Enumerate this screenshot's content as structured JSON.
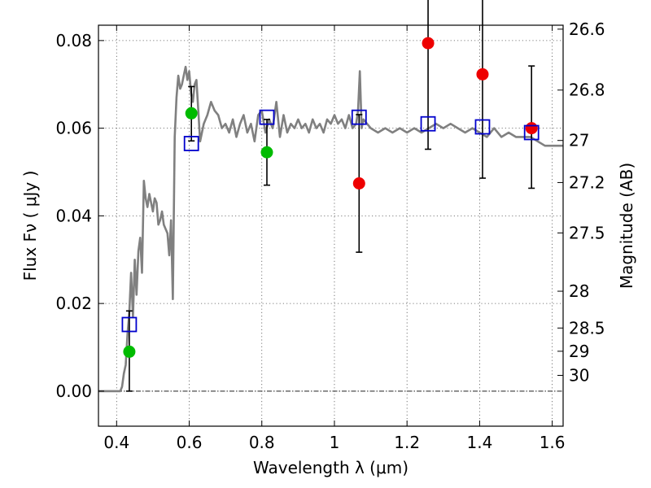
{
  "chart_data": {
    "type": "scatter",
    "xlabel": "Wavelength  λ (μm)",
    "ylabel": "Flux  Fν  ( μJy )",
    "y2label": "Magnitude (AB)",
    "xlim": [
      0.35,
      1.63
    ],
    "ylim": [
      -0.008,
      0.0835
    ],
    "xticks": [
      0.4,
      0.6,
      0.8,
      1.0,
      1.2,
      1.4,
      1.6
    ],
    "xtick_labels": [
      "0.4",
      "0.6",
      "0.8",
      "1",
      "1.2",
      "1.4",
      "1.6"
    ],
    "yticks": [
      0.0,
      0.02,
      0.04,
      0.06,
      0.08
    ],
    "ytick_labels": [
      "0.00",
      "0.02",
      "0.04",
      "0.06",
      "0.08"
    ],
    "mag_ticks": [
      {
        "label": "26.6",
        "flux": 0.0826
      },
      {
        "label": "26.8",
        "flux": 0.0687
      },
      {
        "label": "27",
        "flux": 0.0572
      },
      {
        "label": "27.2",
        "flux": 0.0476
      },
      {
        "label": "27.5",
        "flux": 0.0361
      },
      {
        "label": "28",
        "flux": 0.0228
      },
      {
        "label": "28.5",
        "flux": 0.0144
      },
      {
        "label": "29",
        "flux": 0.0091
      },
      {
        "label": "30",
        "flux": 0.0036
      }
    ],
    "grid": true,
    "series": [
      {
        "name": "green detections",
        "color": "#00bb00",
        "points": [
          {
            "x": 0.435,
            "y": 0.009,
            "err_lo": 0.009,
            "err_hi": 0.0093
          },
          {
            "x": 0.606,
            "y": 0.0634,
            "err_lo": 0.0063,
            "err_hi": 0.0061
          },
          {
            "x": 0.814,
            "y": 0.0545,
            "err_lo": 0.0075,
            "err_hi": 0.0075
          }
        ]
      },
      {
        "name": "red detections",
        "color": "#ee0000",
        "points": [
          {
            "x": 1.068,
            "y": 0.0474,
            "err_lo": 0.0157,
            "err_hi": 0.0157
          },
          {
            "x": 1.258,
            "y": 0.0794,
            "err_lo": 0.0242,
            "err_hi": 0.0242
          },
          {
            "x": 1.408,
            "y": 0.0723,
            "err_lo": 0.0237,
            "err_hi": 0.0237
          },
          {
            "x": 1.543,
            "y": 0.06,
            "err_lo": 0.0137,
            "err_hi": 0.0142
          }
        ]
      },
      {
        "name": "model photometry",
        "color": "#0000cc",
        "marker": "open-square",
        "points": [
          {
            "x": 0.435,
            "y": 0.0152
          },
          {
            "x": 0.606,
            "y": 0.0565
          },
          {
            "x": 0.814,
            "y": 0.0625
          },
          {
            "x": 1.068,
            "y": 0.0625
          },
          {
            "x": 1.258,
            "y": 0.061
          },
          {
            "x": 1.408,
            "y": 0.0603
          },
          {
            "x": 1.543,
            "y": 0.059
          }
        ]
      }
    ],
    "sed": {
      "name": "best-fit SED",
      "color": "#808080",
      "x": [
        0.35,
        0.41,
        0.415,
        0.42,
        0.425,
        0.43,
        0.435,
        0.44,
        0.445,
        0.45,
        0.455,
        0.46,
        0.465,
        0.47,
        0.475,
        0.48,
        0.485,
        0.49,
        0.495,
        0.5,
        0.505,
        0.51,
        0.515,
        0.52,
        0.525,
        0.53,
        0.535,
        0.54,
        0.545,
        0.55,
        0.555,
        0.56,
        0.565,
        0.57,
        0.575,
        0.58,
        0.585,
        0.59,
        0.595,
        0.6,
        0.605,
        0.61,
        0.615,
        0.62,
        0.625,
        0.63,
        0.64,
        0.65,
        0.66,
        0.67,
        0.68,
        0.69,
        0.7,
        0.71,
        0.72,
        0.73,
        0.74,
        0.75,
        0.76,
        0.77,
        0.78,
        0.79,
        0.8,
        0.81,
        0.82,
        0.83,
        0.84,
        0.85,
        0.86,
        0.87,
        0.88,
        0.89,
        0.9,
        0.91,
        0.92,
        0.93,
        0.94,
        0.95,
        0.96,
        0.97,
        0.98,
        0.99,
        1.0,
        1.01,
        1.02,
        1.03,
        1.04,
        1.05,
        1.06,
        1.065,
        1.07,
        1.075,
        1.08,
        1.09,
        1.1,
        1.12,
        1.14,
        1.16,
        1.18,
        1.2,
        1.22,
        1.24,
        1.26,
        1.28,
        1.3,
        1.32,
        1.34,
        1.36,
        1.38,
        1.4,
        1.42,
        1.44,
        1.46,
        1.48,
        1.5,
        1.52,
        1.54,
        1.56,
        1.58,
        1.6,
        1.63
      ],
      "y": [
        0.0,
        0.0,
        0.001,
        0.004,
        0.006,
        0.013,
        0.018,
        0.027,
        0.017,
        0.03,
        0.022,
        0.032,
        0.035,
        0.027,
        0.048,
        0.044,
        0.042,
        0.045,
        0.043,
        0.041,
        0.044,
        0.043,
        0.038,
        0.039,
        0.041,
        0.038,
        0.037,
        0.036,
        0.031,
        0.039,
        0.021,
        0.058,
        0.067,
        0.072,
        0.069,
        0.07,
        0.072,
        0.074,
        0.071,
        0.073,
        0.068,
        0.066,
        0.07,
        0.071,
        0.064,
        0.057,
        0.061,
        0.063,
        0.066,
        0.064,
        0.063,
        0.06,
        0.061,
        0.059,
        0.062,
        0.058,
        0.061,
        0.063,
        0.059,
        0.061,
        0.057,
        0.063,
        0.064,
        0.059,
        0.062,
        0.06,
        0.066,
        0.058,
        0.063,
        0.059,
        0.061,
        0.06,
        0.062,
        0.06,
        0.061,
        0.059,
        0.062,
        0.06,
        0.061,
        0.059,
        0.062,
        0.061,
        0.063,
        0.061,
        0.062,
        0.06,
        0.063,
        0.06,
        0.061,
        0.064,
        0.073,
        0.06,
        0.062,
        0.061,
        0.06,
        0.059,
        0.06,
        0.059,
        0.06,
        0.059,
        0.06,
        0.059,
        0.06,
        0.061,
        0.06,
        0.061,
        0.06,
        0.059,
        0.06,
        0.059,
        0.058,
        0.06,
        0.058,
        0.059,
        0.058,
        0.058,
        0.058,
        0.057,
        0.056,
        0.056,
        0.056
      ]
    }
  }
}
